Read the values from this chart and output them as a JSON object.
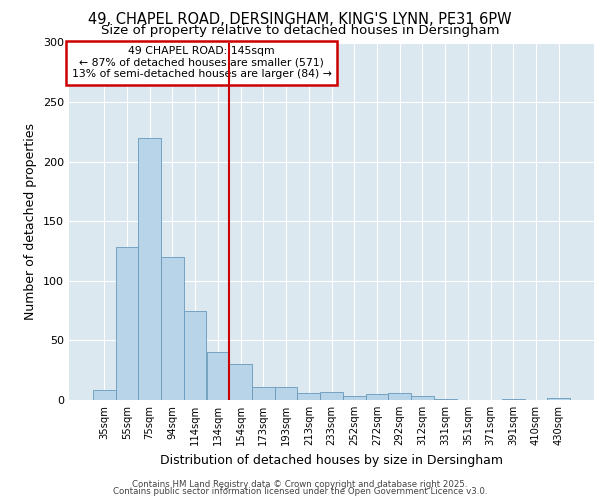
{
  "title_line1": "49, CHAPEL ROAD, DERSINGHAM, KING'S LYNN, PE31 6PW",
  "title_line2": "Size of property relative to detached houses in Dersingham",
  "xlabel": "Distribution of detached houses by size in Dersingham",
  "ylabel": "Number of detached properties",
  "categories": [
    "35sqm",
    "55sqm",
    "75sqm",
    "94sqm",
    "114sqm",
    "134sqm",
    "154sqm",
    "173sqm",
    "193sqm",
    "213sqm",
    "233sqm",
    "252sqm",
    "272sqm",
    "292sqm",
    "312sqm",
    "331sqm",
    "351sqm",
    "371sqm",
    "391sqm",
    "410sqm",
    "430sqm"
  ],
  "values": [
    8,
    128,
    220,
    120,
    75,
    40,
    30,
    11,
    11,
    6,
    7,
    3,
    5,
    6,
    3,
    1,
    0,
    0,
    1,
    0,
    2
  ],
  "bar_color": "#b8d4e8",
  "bar_edge_color": "#6699bb",
  "vline_x_index": 6,
  "vline_color": "#cc0000",
  "annotation_title": "49 CHAPEL ROAD: 145sqm",
  "annotation_line2": "← 87% of detached houses are smaller (571)",
  "annotation_line3": "13% of semi-detached houses are larger (84) →",
  "annotation_box_color": "#cc0000",
  "annotation_bg": "#ffffff",
  "ylim": [
    0,
    300
  ],
  "yticks": [
    0,
    50,
    100,
    150,
    200,
    250,
    300
  ],
  "footer_line1": "Contains HM Land Registry data © Crown copyright and database right 2025.",
  "footer_line2": "Contains public sector information licensed under the Open Government Licence v3.0.",
  "bg_color": "#ffffff",
  "plot_bg_color": "#dce8f0",
  "title_fontsize": 10.5,
  "subtitle_fontsize": 9.5,
  "grid_color": "#ffffff"
}
